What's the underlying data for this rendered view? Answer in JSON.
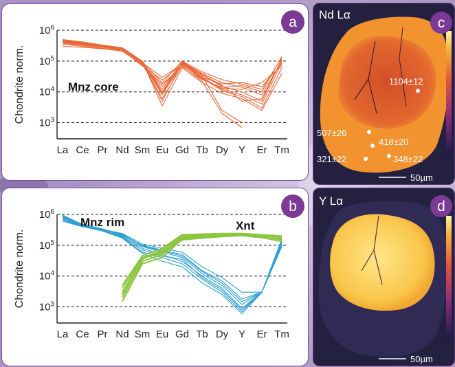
{
  "colors": {
    "core": "#e8683a",
    "rim": "#2a9fd0",
    "xnt": "#8cc63f",
    "badge": "#7b3a96",
    "panel_border": "#7a4a9c"
  },
  "chart_data": [
    {
      "type": "line",
      "panel_label": "a",
      "ylabel": "Chondrite norm.",
      "y_scale": "log",
      "ylim": [
        300,
        1000000
      ],
      "y_ticks": [
        "10^6",
        "10^5",
        "10^4",
        "10^3"
      ],
      "grid": "dashed at decades",
      "categories": [
        "La",
        "Ce",
        "Pr",
        "Nd",
        "Sm",
        "Eu",
        "Gd",
        "Tb",
        "Dy",
        "Y",
        "Er",
        "Tm"
      ],
      "annotations": [
        "Mnz core"
      ],
      "series": [
        {
          "group": "Mnz core",
          "values": [
            450000,
            380000,
            320000,
            260000,
            90000,
            5000,
            90000,
            35000,
            15000,
            10000,
            5000,
            120000
          ]
        },
        {
          "group": "Mnz core",
          "values": [
            400000,
            350000,
            290000,
            240000,
            85000,
            8000,
            85000,
            30000,
            12000,
            8000,
            4000,
            90000
          ]
        },
        {
          "group": "Mnz core",
          "values": [
            500000,
            420000,
            330000,
            270000,
            100000,
            10000,
            95000,
            40000,
            20000,
            14000,
            8000,
            100000
          ]
        },
        {
          "group": "Mnz core",
          "values": [
            380000,
            320000,
            280000,
            230000,
            80000,
            15000,
            80000,
            28000,
            11000,
            7000,
            3000,
            60000
          ]
        },
        {
          "group": "Mnz core",
          "values": [
            420000,
            360000,
            300000,
            250000,
            95000,
            20000,
            100000,
            45000,
            25000,
            18000,
            12000,
            130000
          ]
        },
        {
          "group": "Mnz core",
          "values": [
            350000,
            300000,
            260000,
            220000,
            70000,
            25000,
            75000,
            30000,
            18000,
            20000,
            15000,
            80000
          ]
        },
        {
          "group": "Mnz core",
          "values": [
            460000,
            390000,
            310000,
            265000,
            88000,
            12000,
            92000,
            38000,
            16000,
            5000,
            6000,
            110000
          ]
        },
        {
          "group": "Mnz core",
          "values": [
            390000,
            340000,
            285000,
            235000,
            82000,
            6000,
            70000,
            22000,
            2000,
            700,
            null,
            null
          ]
        },
        {
          "group": "Mnz core",
          "values": [
            430000,
            370000,
            300000,
            255000,
            92000,
            9000,
            88000,
            33000,
            2500,
            1000,
            null,
            null
          ]
        },
        {
          "group": "Mnz core",
          "values": [
            300000,
            280000,
            250000,
            210000,
            75000,
            18000,
            65000,
            25000,
            14000,
            16000,
            10000,
            140000
          ]
        },
        {
          "group": "Mnz core",
          "values": [
            480000,
            400000,
            320000,
            268000,
            98000,
            3500,
            60000,
            20000,
            9000,
            6000,
            2500,
            40000
          ]
        },
        {
          "group": "Mnz core",
          "values": [
            410000,
            355000,
            295000,
            245000,
            87000,
            30000,
            78000,
            26000,
            13000,
            12000,
            20000,
            70000
          ]
        }
      ]
    },
    {
      "type": "line",
      "panel_label": "b",
      "ylabel": "Chondrite norm.",
      "y_scale": "log",
      "ylim": [
        300,
        1000000
      ],
      "y_ticks": [
        "10^6",
        "10^5",
        "10^4",
        "10^3"
      ],
      "grid": "dashed at decades",
      "categories": [
        "La",
        "Ce",
        "Pr",
        "Nd",
        "Sm",
        "Eu",
        "Gd",
        "Tb",
        "Dy",
        "Y",
        "Er",
        "Tm"
      ],
      "annotations": [
        "Mnz rim",
        "Xnt"
      ],
      "series": [
        {
          "group": "Mnz rim",
          "values": [
            800000,
            450000,
            320000,
            200000,
            80000,
            50000,
            30000,
            10000,
            4000,
            900,
            3000,
            150000
          ]
        },
        {
          "group": "Mnz rim",
          "values": [
            700000,
            420000,
            300000,
            180000,
            60000,
            40000,
            25000,
            8000,
            3000,
            700,
            3000,
            120000
          ]
        },
        {
          "group": "Mnz rim",
          "values": [
            900000,
            480000,
            340000,
            220000,
            90000,
            60000,
            40000,
            12000,
            5000,
            1200,
            3000,
            130000
          ]
        },
        {
          "group": "Mnz rim",
          "values": [
            600000,
            400000,
            290000,
            170000,
            55000,
            30000,
            20000,
            6000,
            2500,
            600,
            3000,
            100000
          ]
        },
        {
          "group": "Mnz rim",
          "values": [
            750000,
            440000,
            310000,
            210000,
            100000,
            70000,
            50000,
            15000,
            7000,
            1800,
            3000,
            140000
          ]
        },
        {
          "group": "Mnz rim",
          "values": [
            850000,
            460000,
            330000,
            240000,
            110000,
            80000,
            60000,
            20000,
            9000,
            3000,
            3000,
            110000
          ]
        },
        {
          "group": "Mnz rim",
          "values": [
            650000,
            410000,
            295000,
            190000,
            70000,
            45000,
            35000,
            9000,
            3500,
            800,
            3000,
            90000
          ]
        },
        {
          "group": "Mnz rim",
          "values": [
            950000,
            470000,
            335000,
            230000,
            95000,
            65000,
            45000,
            14000,
            6000,
            1500,
            3000,
            160000
          ]
        },
        {
          "group": "Xnt",
          "values": [
            null,
            null,
            null,
            4000,
            40000,
            60000,
            180000,
            200000,
            210000,
            220000,
            200000,
            180000
          ]
        },
        {
          "group": "Xnt",
          "values": [
            null,
            null,
            null,
            2000,
            30000,
            50000,
            170000,
            190000,
            205000,
            215000,
            190000,
            150000
          ]
        },
        {
          "group": "Xnt",
          "values": [
            null,
            null,
            null,
            3000,
            35000,
            70000,
            200000,
            210000,
            220000,
            230000,
            210000,
            170000
          ]
        },
        {
          "group": "Xnt",
          "values": [
            null,
            null,
            null,
            1500,
            25000,
            40000,
            160000,
            180000,
            195000,
            210000,
            180000,
            130000
          ]
        },
        {
          "group": "Xnt",
          "values": [
            null,
            null,
            null,
            5000,
            45000,
            80000,
            220000,
            230000,
            240000,
            240000,
            220000,
            200000
          ]
        },
        {
          "group": "Xnt",
          "values": [
            null,
            null,
            null,
            2500,
            38000,
            55000,
            150000,
            170000,
            190000,
            205000,
            175000,
            160000
          ]
        }
      ]
    }
  ],
  "maps": {
    "c": {
      "panel_label": "c",
      "title_element": "Nd",
      "title_line": "Lα",
      "scale_label": "50µm",
      "ages": [
        "1104±12",
        "507±26",
        "418±20",
        "321±22",
        "348±22"
      ]
    },
    "d": {
      "panel_label": "d",
      "title_element": "Y",
      "title_line": "Lα",
      "scale_label": "50µm"
    }
  }
}
